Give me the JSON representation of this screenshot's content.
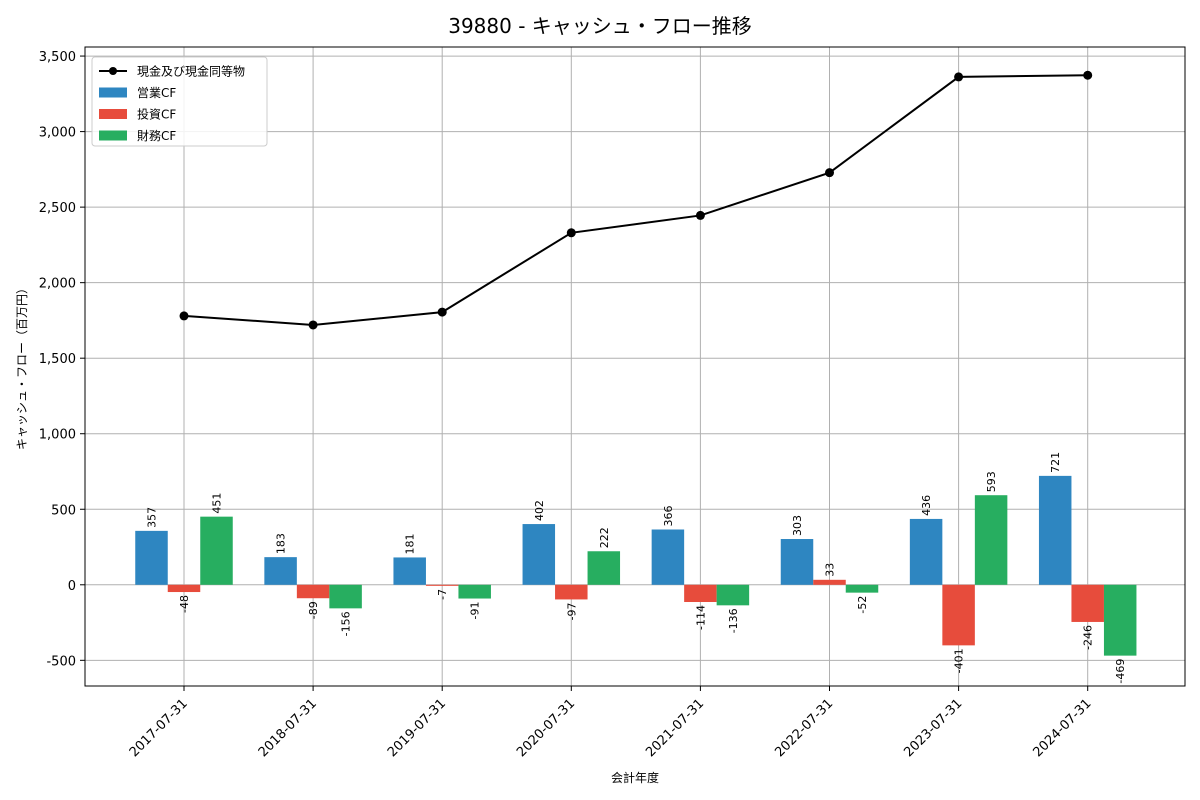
{
  "chart_data": {
    "type": "bar",
    "title": "39880 - キャッシュ・フロー推移",
    "xlabel": "会計年度",
    "ylabel": "キャッシュ・フロー（百万円）",
    "ylim": [
      -670,
      3560
    ],
    "yticks": [
      -500,
      0,
      500,
      1000,
      1500,
      2000,
      2500,
      3000,
      3500
    ],
    "ytick_labels": [
      "-500",
      "0",
      "500",
      "1,000",
      "1,500",
      "2,000",
      "2,500",
      "3,000",
      "3,500"
    ],
    "categories": [
      "2017-07-31",
      "2018-07-31",
      "2019-07-31",
      "2020-07-31",
      "2021-07-31",
      "2022-07-31",
      "2023-07-31",
      "2024-07-31"
    ],
    "grid": true,
    "legend_position": "top-left",
    "series": [
      {
        "name": "営業CF",
        "kind": "bar",
        "color": "#2e86c1",
        "values": [
          357,
          183,
          181,
          402,
          366,
          303,
          436,
          721
        ]
      },
      {
        "name": "投資CF",
        "kind": "bar",
        "color": "#e74c3c",
        "values": [
          -48,
          -89,
          -7,
          -97,
          -114,
          33,
          -401,
          -246
        ]
      },
      {
        "name": "財務CF",
        "kind": "bar",
        "color": "#27ae60",
        "values": [
          451,
          -156,
          -91,
          222,
          -136,
          -52,
          593,
          -469
        ]
      },
      {
        "name": "現金及び現金同等物",
        "kind": "line",
        "color": "#000000",
        "values": [
          1780,
          1720,
          1805,
          2330,
          2445,
          2728,
          3362,
          3373
        ]
      }
    ]
  }
}
